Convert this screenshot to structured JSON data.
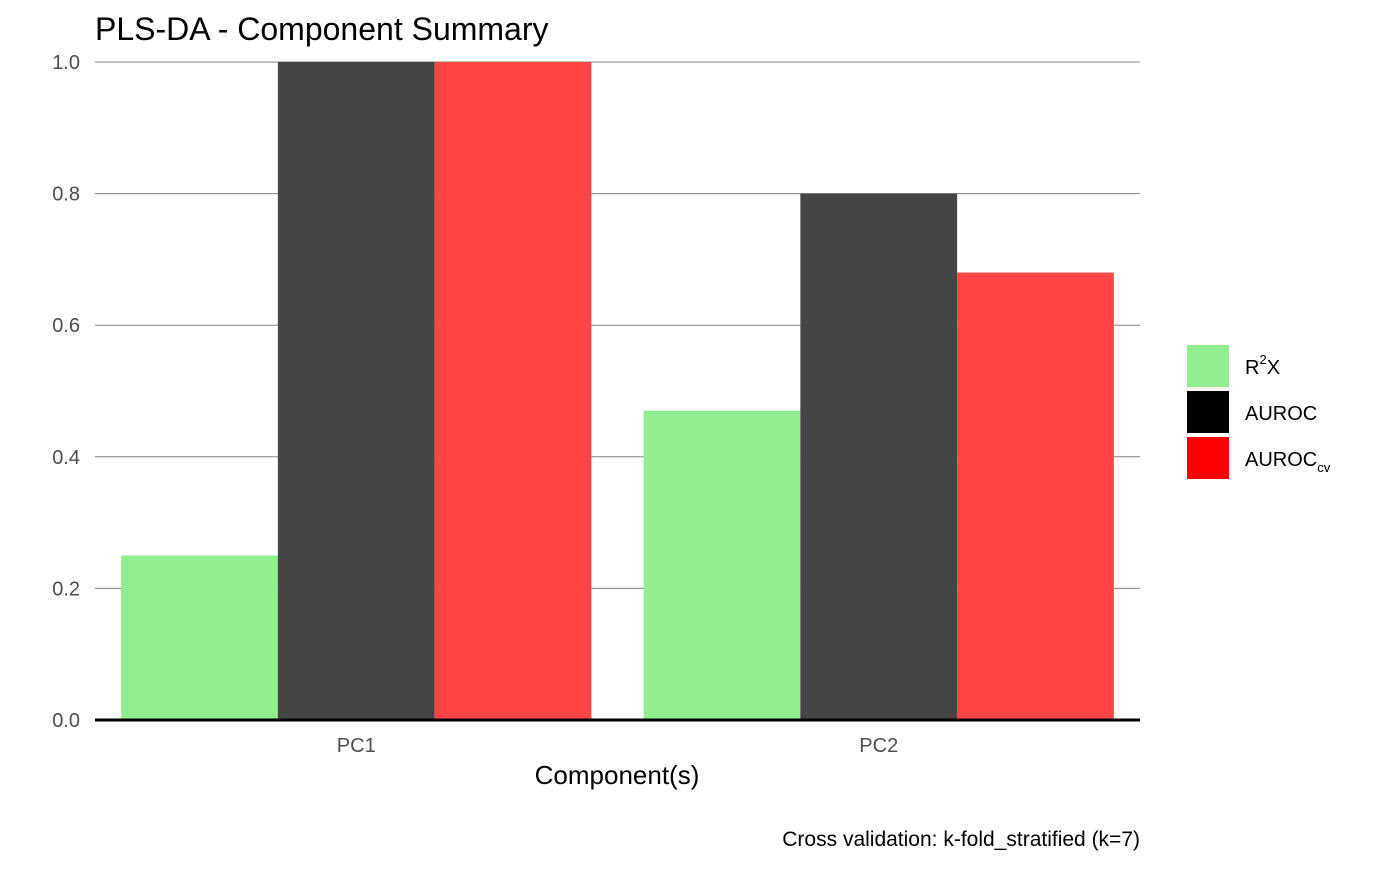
{
  "chart_data": {
    "type": "bar",
    "title": "PLS-DA  - Component Summary",
    "xlabel": "Component(s)",
    "ylabel": "",
    "caption": "Cross validation: k-fold_stratified (k=7)",
    "categories": [
      "PC1",
      "PC2"
    ],
    "ylim": [
      0,
      1
    ],
    "yticks": [
      0.0,
      0.2,
      0.4,
      0.6,
      0.8,
      1.0
    ],
    "ytick_labels": [
      "0.0",
      "0.2",
      "0.4",
      "0.6",
      "0.8",
      "1.0"
    ],
    "grid": "horizontal",
    "legend_position": "right",
    "series": [
      {
        "name": "R2X",
        "legend_base": "R",
        "legend_sup": "2",
        "legend_after": "X",
        "legend_sub": "",
        "values": [
          0.25,
          0.47
        ],
        "color": "#90EE90",
        "legend_color": "#90EE90"
      },
      {
        "name": "AUROC",
        "legend_base": "AUROC",
        "legend_sup": "",
        "legend_after": "",
        "legend_sub": "",
        "values": [
          1.0,
          0.8
        ],
        "color": "#454545",
        "legend_color": "#000000"
      },
      {
        "name": "AUROCcv",
        "legend_base": "AUROC",
        "legend_sup": "",
        "legend_after": "",
        "legend_sub": "cv",
        "values": [
          1.0,
          0.68
        ],
        "color": "#FF4545",
        "legend_color": "#FF0000"
      }
    ]
  }
}
